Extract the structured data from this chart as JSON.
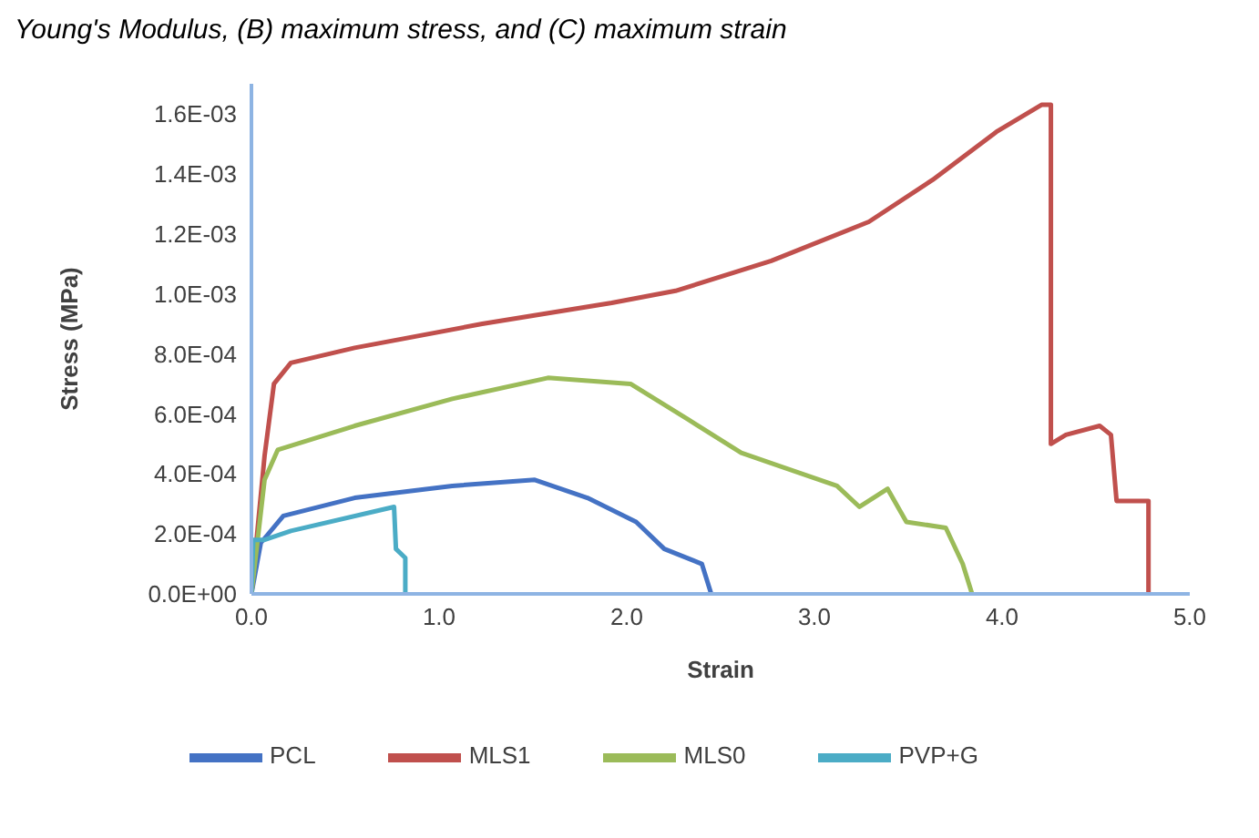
{
  "chart_data": {
    "type": "line",
    "xlabel": "Strain",
    "ylabel": "Stress (MPa)",
    "annotations": [
      "Young's Modulus, (B) maximum stress, and (C) maximum strain"
    ],
    "xlim": [
      0,
      5
    ],
    "xticks": [
      {
        "value": 0,
        "label": "0.0"
      },
      {
        "value": 1,
        "label": "1.0"
      },
      {
        "value": 2,
        "label": "2.0"
      },
      {
        "value": 3,
        "label": "3.0"
      },
      {
        "value": 4,
        "label": "4.0"
      },
      {
        "value": 5,
        "label": "5.0"
      }
    ],
    "ylim": [
      0,
      0.0017
    ],
    "yticks": [
      {
        "value": 0,
        "label": "0.0E+00"
      },
      {
        "value": 0.0002,
        "label": "2.0E-04"
      },
      {
        "value": 0.0004,
        "label": "4.0E-04"
      },
      {
        "value": 0.0006,
        "label": "6.0E-04"
      },
      {
        "value": 0.0008,
        "label": "8.0E-04"
      },
      {
        "value": 0.001,
        "label": "1.0E-03"
      },
      {
        "value": 0.0012,
        "label": "1.2E-03"
      },
      {
        "value": 0.0014,
        "label": "1.4E-03"
      },
      {
        "value": 0.0016,
        "label": "1.6E-03"
      }
    ],
    "grid": false,
    "legend": "bottom",
    "marker": "none",
    "line_style": "solid",
    "series": [
      {
        "name": "PCL",
        "color": "#4472c4",
        "x": [
          0,
          0.05,
          0.17,
          0.55,
          1.07,
          1.51,
          1.79,
          2.05,
          2.2,
          2.4,
          2.45
        ],
        "values": [
          0,
          0.00017,
          0.00026,
          0.00032,
          0.00036,
          0.00038,
          0.00032,
          0.00024,
          0.00015,
          0.0001,
          0
        ]
      },
      {
        "name": "MLS1",
        "color": "#c0504d",
        "x": [
          0,
          0.07,
          0.12,
          0.21,
          0.55,
          1.23,
          1.92,
          2.26,
          2.77,
          3.29,
          3.63,
          3.97,
          4.21,
          4.26,
          4.26,
          4.34,
          4.52,
          4.58,
          4.61,
          4.78,
          4.78
        ],
        "values": [
          0,
          0.00046,
          0.0007,
          0.00077,
          0.00082,
          0.0009,
          0.00097,
          0.00101,
          0.00111,
          0.00124,
          0.00138,
          0.00154,
          0.00163,
          0.00163,
          0.0005,
          0.00053,
          0.00056,
          0.00053,
          0.00031,
          0.00031,
          0
        ]
      },
      {
        "name": "MLS0",
        "color": "#9bbb59",
        "x": [
          0,
          0.07,
          0.14,
          0.55,
          1.07,
          1.58,
          2.02,
          2.33,
          2.61,
          3.12,
          3.24,
          3.39,
          3.49,
          3.7,
          3.79,
          3.84
        ],
        "values": [
          0,
          0.00038,
          0.00048,
          0.00056,
          0.00065,
          0.00072,
          0.0007,
          0.00058,
          0.00047,
          0.00036,
          0.00029,
          0.00035,
          0.00024,
          0.00022,
          0.0001,
          0
        ]
      },
      {
        "name": "PVP+G",
        "color": "#4bacc6",
        "x": [
          0,
          0.01,
          0.07,
          0.21,
          0.76,
          0.77,
          0.82,
          0.82
        ],
        "values": [
          0,
          0.00018,
          0.00018,
          0.00021,
          0.00029,
          0.00015,
          0.00012,
          0
        ]
      }
    ]
  }
}
